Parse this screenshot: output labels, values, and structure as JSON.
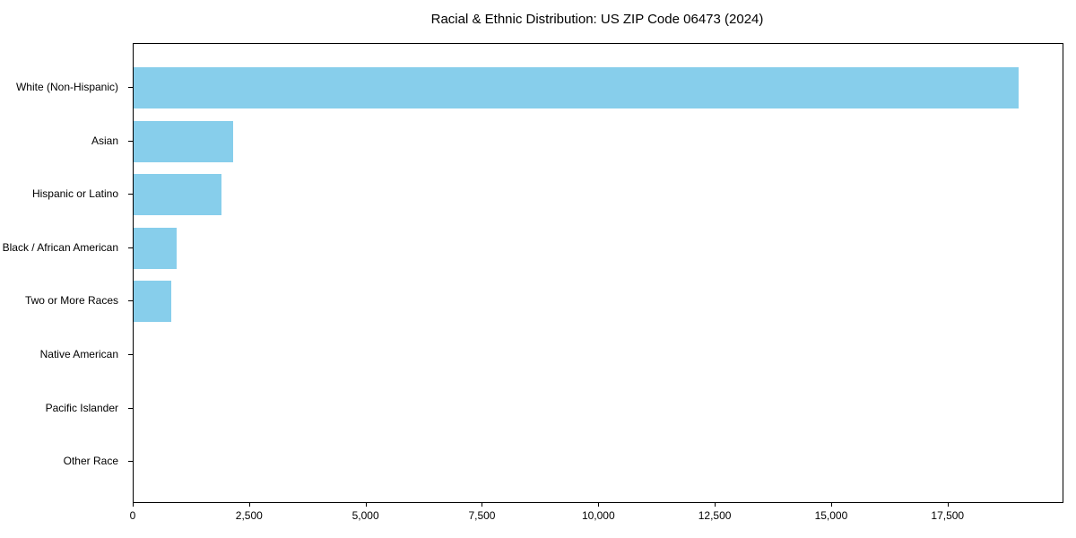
{
  "chart_data": {
    "type": "bar",
    "orientation": "horizontal",
    "title": "Racial & Ethnic Distribution: US ZIP Code 06473 (2024)",
    "categories": [
      "White (Non-Hispanic)",
      "Asian",
      "Hispanic or Latino",
      "Black / African American",
      "Two or More Races",
      "Native American",
      "Pacific Islander",
      "Other Race"
    ],
    "values": [
      19000,
      2130,
      1880,
      930,
      800,
      0,
      0,
      0
    ],
    "xlabel": "",
    "ylabel": "",
    "xlim": [
      0,
      19950
    ],
    "x_ticks": [
      0,
      2500,
      5000,
      7500,
      10000,
      12500,
      15000,
      17500
    ],
    "x_tick_labels": [
      "0",
      "2,500",
      "5,000",
      "7,500",
      "10,000",
      "12,500",
      "15,000",
      "17,500"
    ],
    "bar_color": "#87CEEB",
    "grid": false,
    "legend": false,
    "background_color": "#ffffff",
    "axis_color": "#000000"
  }
}
